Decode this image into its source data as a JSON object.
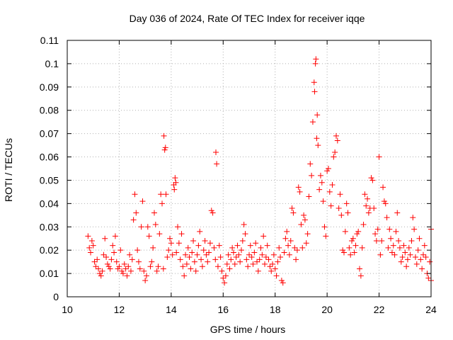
{
  "chart_data": {
    "type": "scatter",
    "title": "Day 036 of 2024, Rate Of TEC Index for receiver iqqe",
    "xlabel": "GPS time / hours",
    "ylabel": "ROTI / TECUs",
    "xlim": [
      10,
      24
    ],
    "ylim": [
      0,
      0.11
    ],
    "xticks": [
      "10",
      "12",
      "14",
      "16",
      "18",
      "20",
      "22",
      "24"
    ],
    "yticks": [
      "0",
      "0.01",
      "0.02",
      "0.03",
      "0.04",
      "0.05",
      "0.06",
      "0.07",
      "0.08",
      "0.09",
      "0.1",
      "0.11"
    ],
    "grid": true,
    "marker": "+",
    "series": [
      {
        "name": "ROTI",
        "color": "#ff0000",
        "points": [
          [
            10.8,
            0.026
          ],
          [
            10.85,
            0.021
          ],
          [
            10.9,
            0.019
          ],
          [
            10.95,
            0.024
          ],
          [
            11.0,
            0.022
          ],
          [
            11.05,
            0.015
          ],
          [
            11.1,
            0.013
          ],
          [
            11.15,
            0.016
          ],
          [
            11.2,
            0.012
          ],
          [
            11.25,
            0.01
          ],
          [
            11.3,
            0.009
          ],
          [
            11.35,
            0.011
          ],
          [
            11.4,
            0.018
          ],
          [
            11.45,
            0.025
          ],
          [
            11.5,
            0.017
          ],
          [
            11.55,
            0.014
          ],
          [
            11.6,
            0.013
          ],
          [
            11.65,
            0.012
          ],
          [
            11.7,
            0.016
          ],
          [
            11.75,
            0.022
          ],
          [
            11.8,
            0.019
          ],
          [
            11.85,
            0.026
          ],
          [
            11.9,
            0.015
          ],
          [
            11.95,
            0.012
          ],
          [
            12.0,
            0.013
          ],
          [
            12.05,
            0.02
          ],
          [
            12.1,
            0.011
          ],
          [
            12.15,
            0.01
          ],
          [
            12.2,
            0.014
          ],
          [
            12.25,
            0.012
          ],
          [
            12.3,
            0.009
          ],
          [
            12.35,
            0.013
          ],
          [
            12.4,
            0.018
          ],
          [
            12.45,
            0.011
          ],
          [
            12.5,
            0.016
          ],
          [
            12.55,
            0.033
          ],
          [
            12.6,
            0.044
          ],
          [
            12.65,
            0.036
          ],
          [
            12.7,
            0.02
          ],
          [
            12.75,
            0.015
          ],
          [
            12.8,
            0.012
          ],
          [
            12.85,
            0.03
          ],
          [
            12.9,
            0.041
          ],
          [
            12.95,
            0.011
          ],
          [
            13.0,
            0.007
          ],
          [
            13.05,
            0.009
          ],
          [
            13.1,
            0.03
          ],
          [
            13.15,
            0.026
          ],
          [
            13.2,
            0.013
          ],
          [
            13.25,
            0.015
          ],
          [
            13.3,
            0.021
          ],
          [
            13.35,
            0.036
          ],
          [
            13.4,
            0.031
          ],
          [
            13.45,
            0.011
          ],
          [
            13.5,
            0.013
          ],
          [
            13.55,
            0.027
          ],
          [
            13.6,
            0.044
          ],
          [
            13.65,
            0.04
          ],
          [
            13.7,
            0.012
          ],
          [
            13.72,
            0.069
          ],
          [
            13.75,
            0.063
          ],
          [
            13.78,
            0.064
          ],
          [
            13.8,
            0.044
          ],
          [
            13.85,
            0.017
          ],
          [
            13.9,
            0.02
          ],
          [
            13.95,
            0.025
          ],
          [
            14.0,
            0.023
          ],
          [
            14.05,
            0.018
          ],
          [
            14.1,
            0.048
          ],
          [
            14.12,
            0.046
          ],
          [
            14.15,
            0.051
          ],
          [
            14.18,
            0.049
          ],
          [
            14.2,
            0.019
          ],
          [
            14.25,
            0.03
          ],
          [
            14.3,
            0.023
          ],
          [
            14.35,
            0.016
          ],
          [
            14.4,
            0.027
          ],
          [
            14.45,
            0.013
          ],
          [
            14.5,
            0.009
          ],
          [
            14.55,
            0.018
          ],
          [
            14.6,
            0.014
          ],
          [
            14.65,
            0.021
          ],
          [
            14.7,
            0.017
          ],
          [
            14.75,
            0.012
          ],
          [
            14.8,
            0.019
          ],
          [
            14.85,
            0.024
          ],
          [
            14.9,
            0.015
          ],
          [
            14.95,
            0.011
          ],
          [
            15.0,
            0.018
          ],
          [
            15.05,
            0.022
          ],
          [
            15.1,
            0.028
          ],
          [
            15.15,
            0.016
          ],
          [
            15.2,
            0.013
          ],
          [
            15.25,
            0.02
          ],
          [
            15.3,
            0.024
          ],
          [
            15.35,
            0.018
          ],
          [
            15.4,
            0.015
          ],
          [
            15.45,
            0.019
          ],
          [
            15.5,
            0.023
          ],
          [
            15.55,
            0.037
          ],
          [
            15.6,
            0.036
          ],
          [
            15.65,
            0.021
          ],
          [
            15.7,
            0.016
          ],
          [
            15.72,
            0.062
          ],
          [
            15.75,
            0.057
          ],
          [
            15.8,
            0.013
          ],
          [
            15.85,
            0.022
          ],
          [
            15.9,
            0.017
          ],
          [
            15.95,
            0.011
          ],
          [
            16.0,
            0.008
          ],
          [
            16.05,
            0.006
          ],
          [
            16.1,
            0.009
          ],
          [
            16.15,
            0.014
          ],
          [
            16.2,
            0.018
          ],
          [
            16.25,
            0.012
          ],
          [
            16.3,
            0.016
          ],
          [
            16.35,
            0.021
          ],
          [
            16.4,
            0.019
          ],
          [
            16.45,
            0.014
          ],
          [
            16.5,
            0.017
          ],
          [
            16.55,
            0.022
          ],
          [
            16.6,
            0.018
          ],
          [
            16.65,
            0.015
          ],
          [
            16.7,
            0.02
          ],
          [
            16.75,
            0.024
          ],
          [
            16.8,
            0.031
          ],
          [
            16.85,
            0.027
          ],
          [
            16.9,
            0.016
          ],
          [
            16.95,
            0.013
          ],
          [
            17.0,
            0.018
          ],
          [
            17.05,
            0.022
          ],
          [
            17.1,
            0.017
          ],
          [
            17.15,
            0.014
          ],
          [
            17.2,
            0.019
          ],
          [
            17.25,
            0.023
          ],
          [
            17.3,
            0.015
          ],
          [
            17.35,
            0.011
          ],
          [
            17.4,
            0.016
          ],
          [
            17.45,
            0.021
          ],
          [
            17.5,
            0.018
          ],
          [
            17.55,
            0.026
          ],
          [
            17.6,
            0.014
          ],
          [
            17.65,
            0.017
          ],
          [
            17.7,
            0.022
          ],
          [
            17.75,
            0.016
          ],
          [
            17.8,
            0.013
          ],
          [
            17.85,
            0.011
          ],
          [
            17.9,
            0.014
          ],
          [
            17.95,
            0.018
          ],
          [
            18.0,
            0.012
          ],
          [
            18.05,
            0.009
          ],
          [
            18.1,
            0.015
          ],
          [
            18.15,
            0.021
          ],
          [
            18.2,
            0.017
          ],
          [
            18.25,
            0.007
          ],
          [
            18.3,
            0.006
          ],
          [
            18.35,
            0.019
          ],
          [
            18.4,
            0.025
          ],
          [
            18.45,
            0.028
          ],
          [
            18.5,
            0.022
          ],
          [
            18.55,
            0.018
          ],
          [
            18.6,
            0.024
          ],
          [
            18.65,
            0.038
          ],
          [
            18.7,
            0.036
          ],
          [
            18.75,
            0.021
          ],
          [
            18.8,
            0.016
          ],
          [
            18.85,
            0.02
          ],
          [
            18.9,
            0.047
          ],
          [
            18.95,
            0.045
          ],
          [
            19.0,
            0.031
          ],
          [
            19.05,
            0.021
          ],
          [
            19.1,
            0.035
          ],
          [
            19.15,
            0.033
          ],
          [
            19.2,
            0.023
          ],
          [
            19.25,
            0.027
          ],
          [
            19.3,
            0.043
          ],
          [
            19.35,
            0.057
          ],
          [
            19.4,
            0.052
          ],
          [
            19.45,
            0.075
          ],
          [
            19.5,
            0.092
          ],
          [
            19.52,
            0.088
          ],
          [
            19.55,
            0.1
          ],
          [
            19.57,
            0.102
          ],
          [
            19.6,
            0.068
          ],
          [
            19.62,
            0.078
          ],
          [
            19.65,
            0.065
          ],
          [
            19.7,
            0.046
          ],
          [
            19.75,
            0.052
          ],
          [
            19.8,
            0.049
          ],
          [
            19.85,
            0.041
          ],
          [
            19.9,
            0.03
          ],
          [
            19.95,
            0.026
          ],
          [
            20.0,
            0.054
          ],
          [
            20.05,
            0.055
          ],
          [
            20.1,
            0.045
          ],
          [
            20.15,
            0.039
          ],
          [
            20.2,
            0.048
          ],
          [
            20.25,
            0.06
          ],
          [
            20.3,
            0.062
          ],
          [
            20.35,
            0.069
          ],
          [
            20.4,
            0.067
          ],
          [
            20.45,
            0.038
          ],
          [
            20.5,
            0.044
          ],
          [
            20.55,
            0.035
          ],
          [
            20.6,
            0.02
          ],
          [
            20.65,
            0.019
          ],
          [
            20.7,
            0.028
          ],
          [
            20.75,
            0.04
          ],
          [
            20.8,
            0.036
          ],
          [
            20.85,
            0.021
          ],
          [
            20.9,
            0.018
          ],
          [
            20.95,
            0.024
          ],
          [
            21.0,
            0.025
          ],
          [
            21.05,
            0.019
          ],
          [
            21.1,
            0.022
          ],
          [
            21.15,
            0.027
          ],
          [
            21.2,
            0.028
          ],
          [
            21.25,
            0.012
          ],
          [
            21.3,
            0.009
          ],
          [
            21.35,
            0.021
          ],
          [
            21.4,
            0.031
          ],
          [
            21.45,
            0.044
          ],
          [
            21.5,
            0.039
          ],
          [
            21.55,
            0.042
          ],
          [
            21.6,
            0.036
          ],
          [
            21.65,
            0.038
          ],
          [
            21.7,
            0.051
          ],
          [
            21.75,
            0.05
          ],
          [
            21.8,
            0.038
          ],
          [
            21.85,
            0.027
          ],
          [
            21.9,
            0.024
          ],
          [
            21.95,
            0.029
          ],
          [
            22.0,
            0.06
          ],
          [
            22.05,
            0.018
          ],
          [
            22.1,
            0.024
          ],
          [
            22.15,
            0.047
          ],
          [
            22.2,
            0.041
          ],
          [
            22.25,
            0.04
          ],
          [
            22.3,
            0.034
          ],
          [
            22.35,
            0.021
          ],
          [
            22.4,
            0.029
          ],
          [
            22.45,
            0.025
          ],
          [
            22.5,
            0.019
          ],
          [
            22.55,
            0.022
          ],
          [
            22.6,
            0.018
          ],
          [
            22.65,
            0.028
          ],
          [
            22.7,
            0.036
          ],
          [
            22.75,
            0.024
          ],
          [
            22.8,
            0.021
          ],
          [
            22.85,
            0.015
          ],
          [
            22.9,
            0.017
          ],
          [
            22.95,
            0.022
          ],
          [
            23.0,
            0.019
          ],
          [
            23.05,
            0.013
          ],
          [
            23.1,
            0.016
          ],
          [
            23.15,
            0.021
          ],
          [
            23.2,
            0.018
          ],
          [
            23.25,
            0.024
          ],
          [
            23.3,
            0.034
          ],
          [
            23.35,
            0.029
          ],
          [
            23.4,
            0.017
          ],
          [
            23.45,
            0.014
          ],
          [
            23.5,
            0.02
          ],
          [
            23.55,
            0.025
          ],
          [
            23.6,
            0.016
          ],
          [
            23.65,
            0.012
          ],
          [
            23.7,
            0.018
          ],
          [
            23.75,
            0.022
          ],
          [
            23.8,
            0.017
          ],
          [
            23.85,
            0.01
          ],
          [
            23.9,
            0.008
          ],
          [
            23.95,
            0.015
          ],
          [
            24.0,
            0.029
          ],
          [
            24.0,
            0.007
          ]
        ]
      }
    ]
  }
}
